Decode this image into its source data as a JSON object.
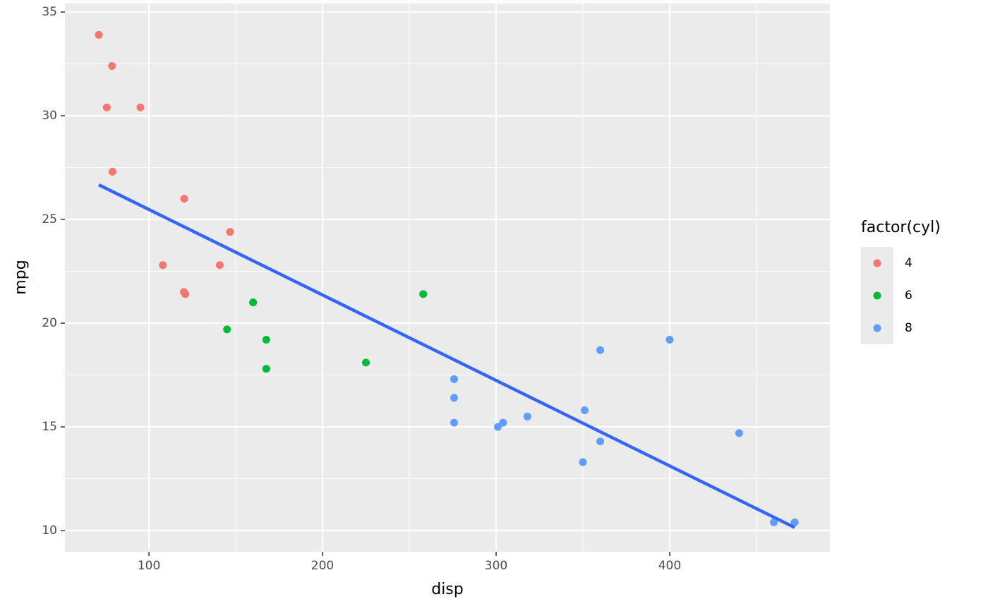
{
  "chart_data": {
    "type": "scatter",
    "x_label": "disp",
    "y_label": "mpg",
    "legend_title": "factor(cyl)",
    "legend": "right",
    "xlim": [
      51.6,
      492.3
    ],
    "ylim": [
      8.98,
      35.41
    ],
    "xticks": [
      100,
      200,
      300,
      400
    ],
    "yticks": [
      10,
      15,
      20,
      25,
      30,
      35
    ],
    "x_minor_grid": [
      150,
      250,
      350,
      450
    ],
    "y_minor_grid": [
      12.5,
      17.5,
      22.5,
      27.5,
      32.5
    ],
    "grid": true,
    "series": [
      {
        "name": "4",
        "color": "#F8766D",
        "x": [
          108,
          146.7,
          140.8,
          78.7,
          75.7,
          71.1,
          120.1,
          79,
          120.3,
          95.1,
          121
        ],
        "values": [
          22.8,
          24.4,
          22.8,
          32.4,
          30.4,
          33.9,
          21.5,
          27.3,
          26,
          30.4,
          21.4
        ]
      },
      {
        "name": "6",
        "color": "#00BA38",
        "x": [
          160,
          160,
          258,
          225,
          167.6,
          167.6,
          145
        ],
        "values": [
          21,
          21,
          21.4,
          18.1,
          19.2,
          17.8,
          19.7
        ]
      },
      {
        "name": "8",
        "color": "#619CFF",
        "x": [
          360,
          360,
          275.8,
          275.8,
          275.8,
          472,
          460,
          440,
          318,
          304,
          350,
          400,
          351,
          301
        ],
        "values": [
          18.7,
          14.3,
          16.4,
          17.3,
          15.2,
          10.4,
          10.4,
          14.7,
          15.5,
          15.2,
          13.3,
          19.2,
          15.8,
          15
        ]
      }
    ],
    "fit_line": {
      "color": "#3366FF",
      "x": [
        71.1,
        472
      ],
      "values": [
        26.67,
        10.15
      ]
    }
  }
}
